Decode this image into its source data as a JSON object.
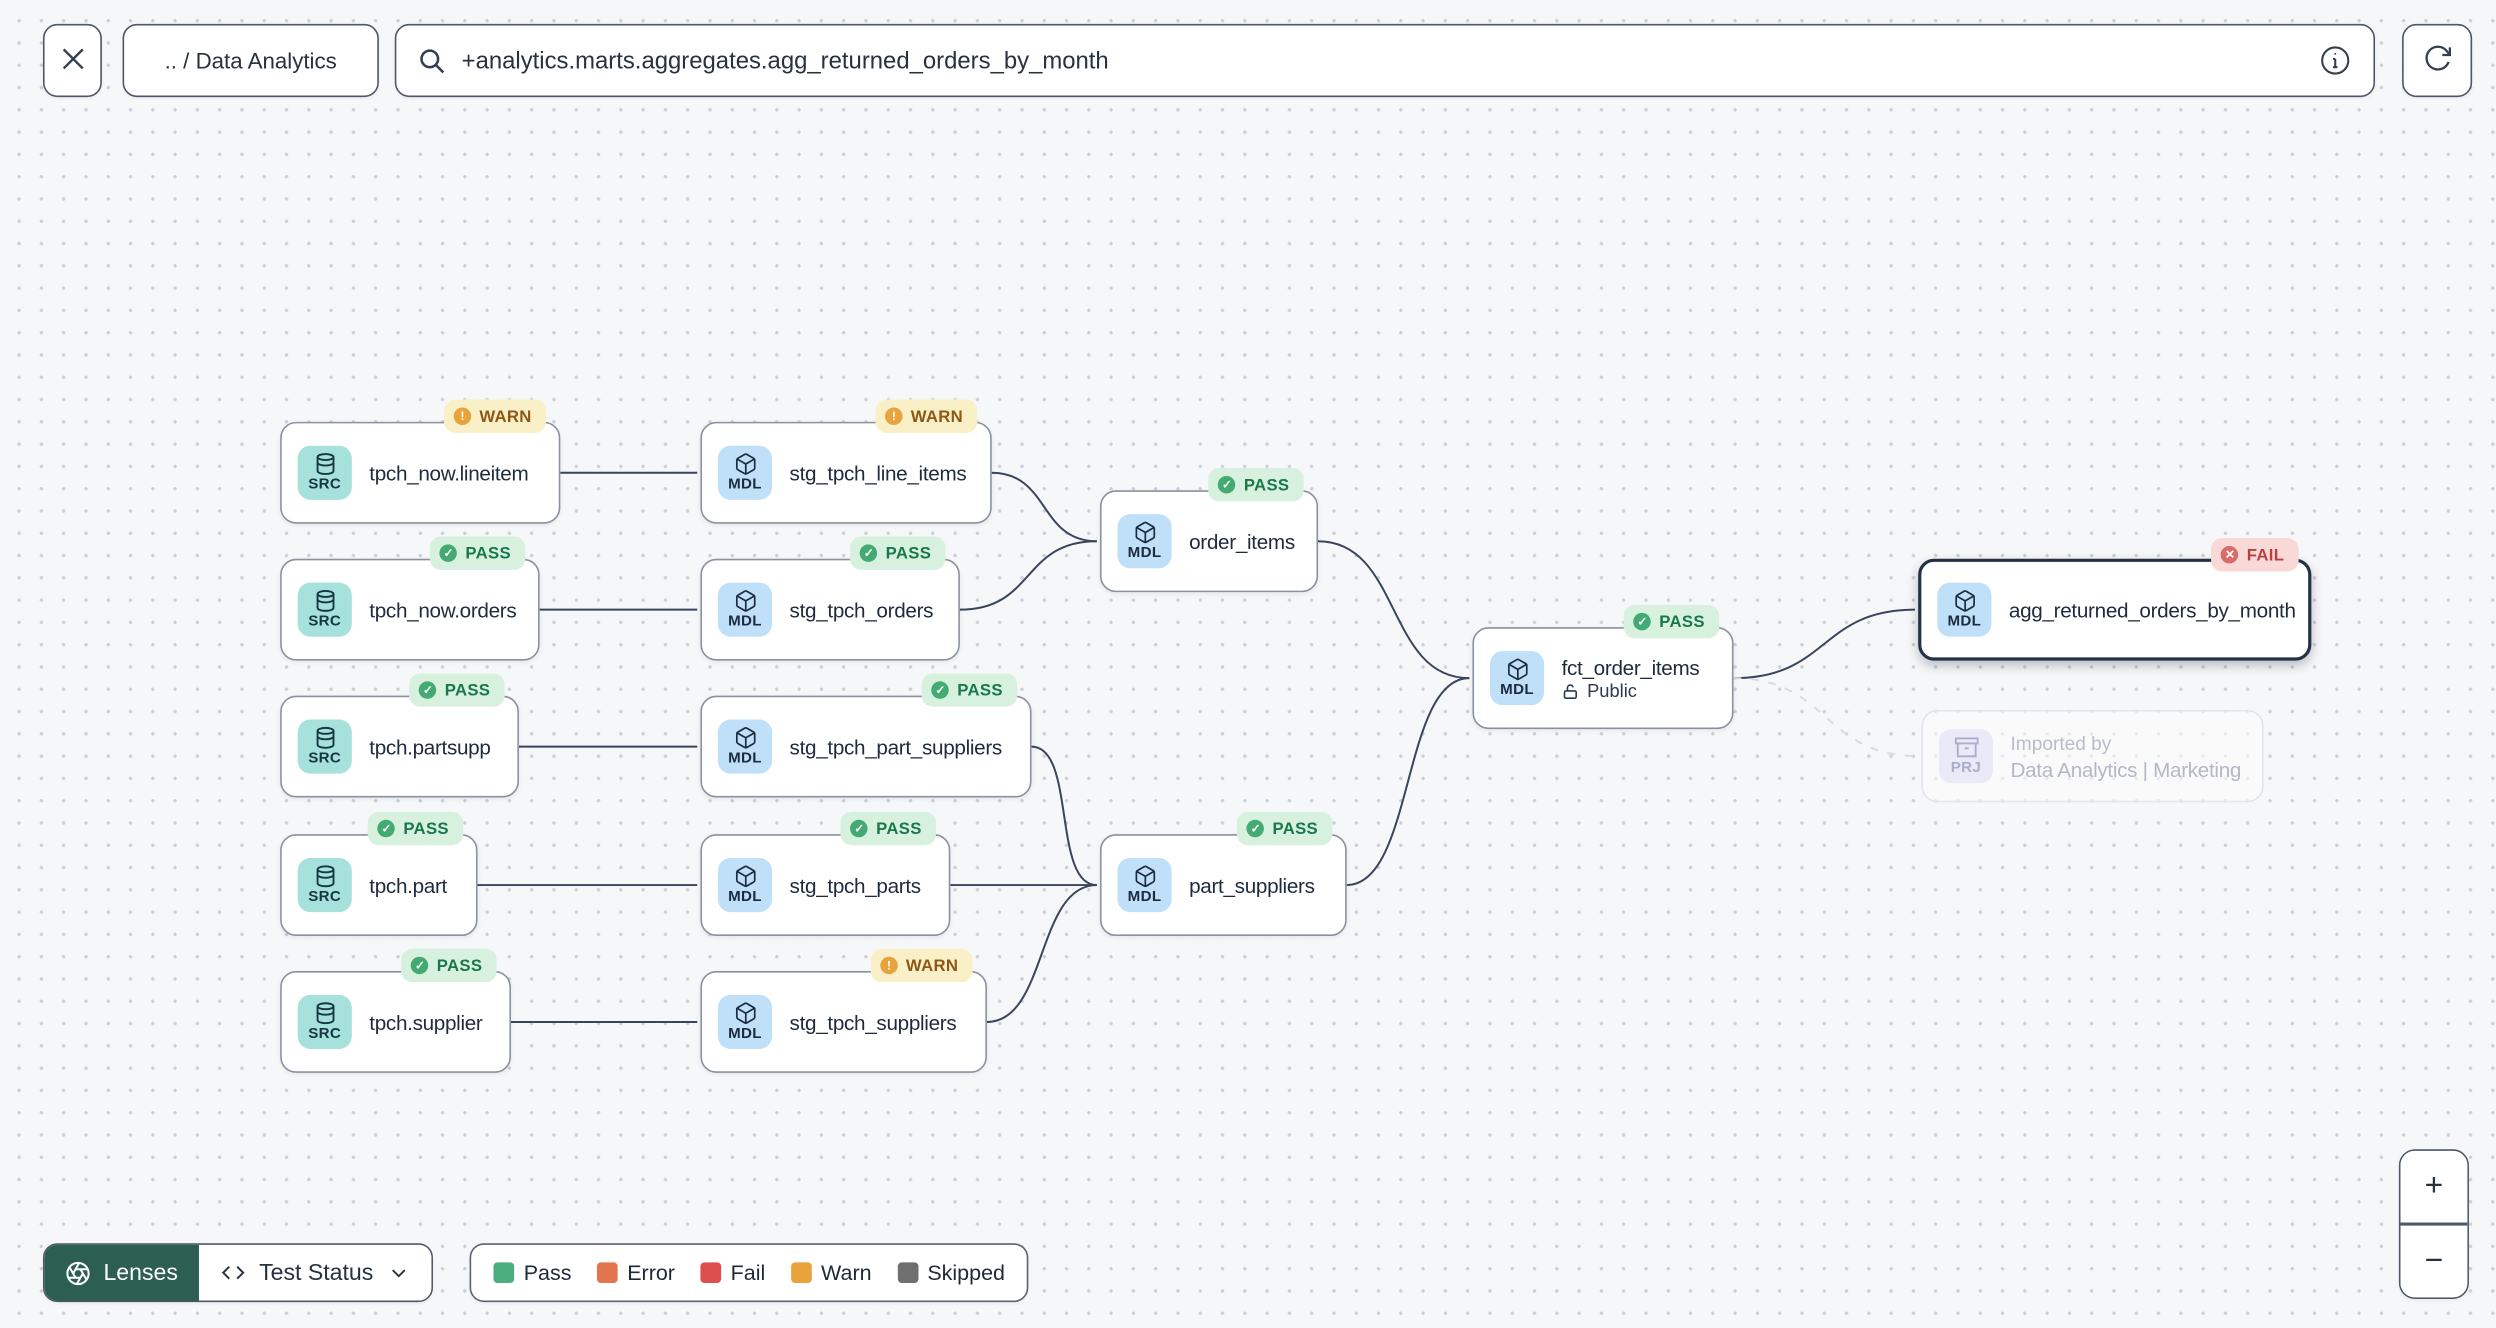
{
  "topbar": {
    "breadcrumb": ".. / Data Analytics",
    "search_value": "+analytics.marts.aggregates.agg_returned_orders_by_month"
  },
  "graph": {
    "nodes": [
      {
        "id": "tpch_now_lineitem",
        "kind": "SRC",
        "label": "tpch_now.lineitem",
        "status": "WARN"
      },
      {
        "id": "stg_tpch_line_items",
        "kind": "MDL",
        "label": "stg_tpch_line_items",
        "status": "WARN"
      },
      {
        "id": "tpch_now_orders",
        "kind": "SRC",
        "label": "tpch_now.orders",
        "status": "PASS"
      },
      {
        "id": "stg_tpch_orders",
        "kind": "MDL",
        "label": "stg_tpch_orders",
        "status": "PASS"
      },
      {
        "id": "order_items",
        "kind": "MDL",
        "label": "order_items",
        "status": "PASS"
      },
      {
        "id": "tpch_partsupp",
        "kind": "SRC",
        "label": "tpch.partsupp",
        "status": "PASS"
      },
      {
        "id": "stg_tpch_part_suppliers",
        "kind": "MDL",
        "label": "stg_tpch_part_suppliers",
        "status": "PASS"
      },
      {
        "id": "fct_order_items",
        "kind": "MDL",
        "label": "fct_order_items",
        "status": "PASS",
        "access": "Public"
      },
      {
        "id": "agg_returned_orders_by_month",
        "kind": "MDL",
        "label": "agg_returned_orders_by_month",
        "status": "FAIL",
        "selected": true
      },
      {
        "id": "imported_by",
        "kind": "PRJ",
        "label": "Data Analytics | Marketing",
        "sublabel": "Imported by",
        "faded": true
      },
      {
        "id": "tpch_part",
        "kind": "SRC",
        "label": "tpch.part",
        "status": "PASS"
      },
      {
        "id": "stg_tpch_parts",
        "kind": "MDL",
        "label": "stg_tpch_parts",
        "status": "PASS"
      },
      {
        "id": "part_suppliers",
        "kind": "MDL",
        "label": "part_suppliers",
        "status": "PASS"
      },
      {
        "id": "tpch_supplier",
        "kind": "SRC",
        "label": "tpch.supplier",
        "status": "PASS"
      },
      {
        "id": "stg_tpch_suppliers",
        "kind": "MDL",
        "label": "stg_tpch_suppliers",
        "status": "WARN"
      }
    ],
    "edges": [
      {
        "from": "tpch_now_lineitem",
        "to": "stg_tpch_line_items",
        "style": "solid"
      },
      {
        "from": "tpch_now_orders",
        "to": "stg_tpch_orders",
        "style": "solid"
      },
      {
        "from": "tpch_partsupp",
        "to": "stg_tpch_part_suppliers",
        "style": "solid"
      },
      {
        "from": "tpch_part",
        "to": "stg_tpch_parts",
        "style": "solid"
      },
      {
        "from": "tpch_supplier",
        "to": "stg_tpch_suppliers",
        "style": "solid"
      },
      {
        "from": "stg_tpch_line_items",
        "to": "order_items",
        "style": "solid"
      },
      {
        "from": "stg_tpch_orders",
        "to": "order_items",
        "style": "solid"
      },
      {
        "from": "order_items",
        "to": "fct_order_items",
        "style": "solid"
      },
      {
        "from": "stg_tpch_part_suppliers",
        "to": "part_suppliers",
        "style": "solid"
      },
      {
        "from": "stg_tpch_parts",
        "to": "part_suppliers",
        "style": "solid"
      },
      {
        "from": "stg_tpch_suppliers",
        "to": "part_suppliers",
        "style": "solid"
      },
      {
        "from": "part_suppliers",
        "to": "fct_order_items",
        "style": "solid"
      },
      {
        "from": "fct_order_items",
        "to": "agg_returned_orders_by_month",
        "style": "solid"
      },
      {
        "from": "fct_order_items",
        "to": "imported_by",
        "style": "dashed"
      }
    ],
    "badge_glyphs": {
      "PASS": "✓",
      "WARN": "!",
      "FAIL": "✕"
    }
  },
  "footer": {
    "lenses_label": "Lenses",
    "lens_selected": "Test Status",
    "legend": [
      {
        "label": "Pass",
        "color": "#4CAE7E"
      },
      {
        "label": "Error",
        "color": "#E2754E"
      },
      {
        "label": "Fail",
        "color": "#DD4F4F"
      },
      {
        "label": "Warn",
        "color": "#E8A33D"
      },
      {
        "label": "Skipped",
        "color": "#6F6F6F"
      }
    ]
  },
  "zoom_controls": {
    "in": "+",
    "out": "−"
  },
  "colors": {
    "lenses_button": "#2C5E51",
    "selected_node_border": "#243144",
    "badge_pass_bg": "#D8F1DF",
    "badge_warn_bg": "#FAF0C7",
    "badge_fail_bg": "#F9D8D8",
    "src_icon_bg": "#A6E1DB",
    "mdl_icon_bg": "#BFE0F8",
    "prj_icon_bg": "#E9E9F7"
  }
}
